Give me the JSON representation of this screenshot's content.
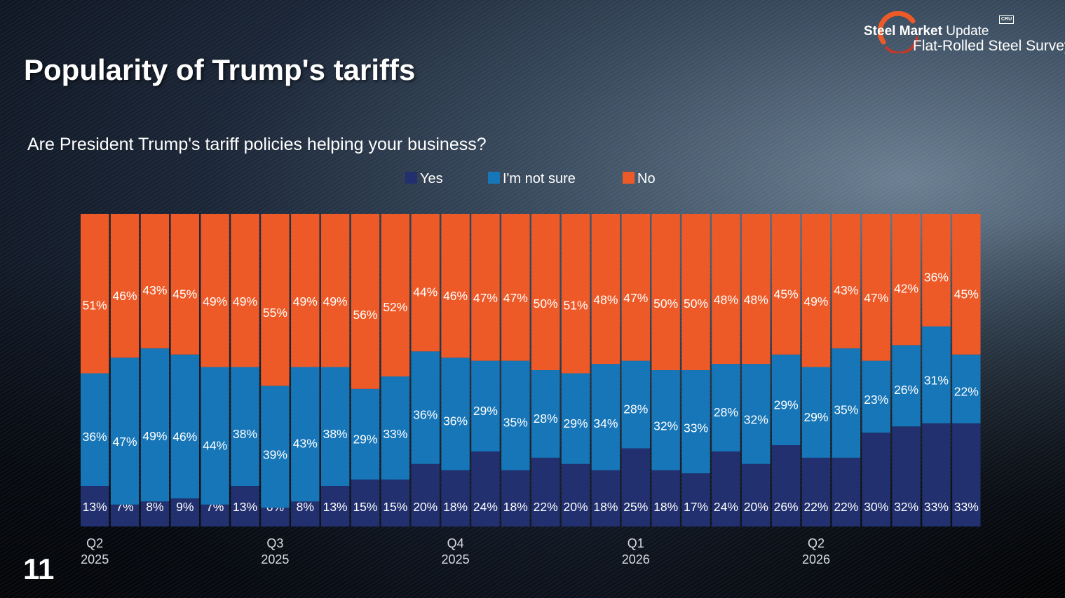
{
  "title": "Popularity of Trump's tariffs",
  "page_number": "11",
  "logo": {
    "line1_bold": "Steel Market",
    "line1_light": "Update",
    "line2": "Flat-Rolled Steel Survey",
    "badge": "CRU"
  },
  "colors": {
    "yes": "#22306f",
    "not_sure": "#1776b8",
    "no": "#ee5a27"
  },
  "chart_data": {
    "type": "bar",
    "stacked": true,
    "title": "Are President Trump's tariff policies helping your business?",
    "legend_position": "top",
    "ylim": [
      0,
      100
    ],
    "grid": false,
    "x_tick_labels": [
      {
        "index": 0,
        "label": [
          "Q2",
          "2025"
        ]
      },
      {
        "index": 6,
        "label": [
          "Q3",
          "2025"
        ]
      },
      {
        "index": 12,
        "label": [
          "Q4",
          "2025"
        ]
      },
      {
        "index": 18,
        "label": [
          "Q1",
          "2026"
        ]
      },
      {
        "index": 24,
        "label": [
          "Q2",
          "2026"
        ]
      }
    ],
    "series": [
      {
        "name": "Yes",
        "color": "#22306f",
        "values": [
          13,
          7,
          8,
          9,
          7,
          13,
          6,
          8,
          13,
          15,
          15,
          20,
          18,
          24,
          18,
          22,
          20,
          18,
          25,
          18,
          17,
          24,
          20,
          26,
          22,
          22,
          30,
          32,
          33,
          33
        ]
      },
      {
        "name": "I'm not sure",
        "color": "#1776b8",
        "values": [
          36,
          47,
          49,
          46,
          44,
          38,
          39,
          43,
          38,
          29,
          33,
          36,
          36,
          29,
          35,
          28,
          29,
          34,
          28,
          32,
          33,
          28,
          32,
          29,
          29,
          35,
          23,
          26,
          31,
          22
        ]
      },
      {
        "name": "No",
        "color": "#ee5a27",
        "values": [
          51,
          46,
          43,
          45,
          49,
          49,
          55,
          49,
          49,
          56,
          52,
          44,
          46,
          47,
          47,
          50,
          51,
          48,
          47,
          50,
          50,
          48,
          48,
          45,
          49,
          43,
          47,
          42,
          36,
          45
        ]
      }
    ]
  }
}
